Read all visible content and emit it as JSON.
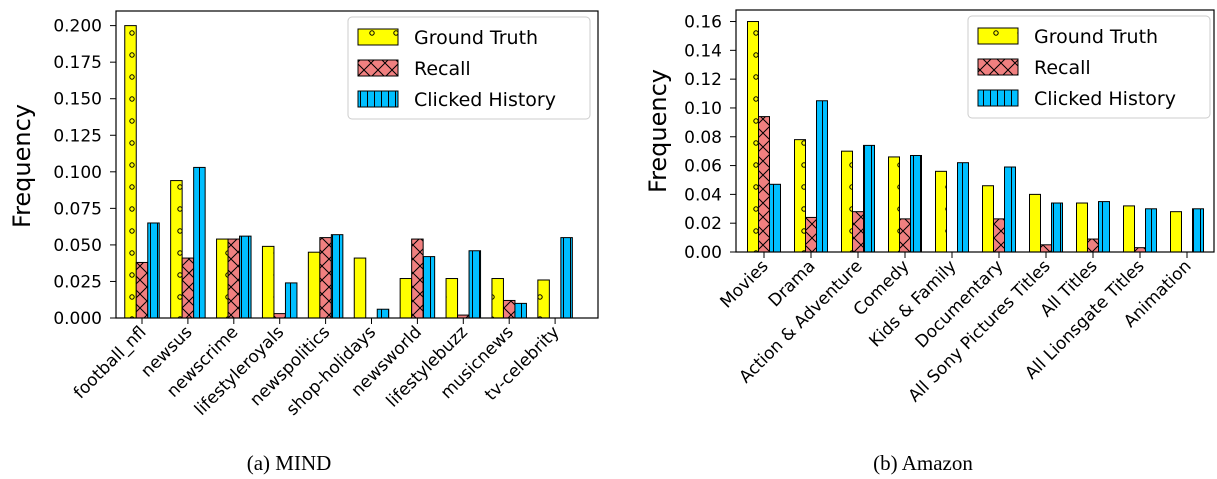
{
  "colors": {
    "ground_truth": "#ffff00",
    "recall": "#f08080",
    "clicked_history": "#00bfff",
    "edge": "#000000"
  },
  "legend_labels": [
    "Ground Truth",
    "Recall",
    "Clicked History"
  ],
  "chart_data": [
    {
      "type": "bar",
      "caption": "(a) MIND",
      "ylabel": "Frequency",
      "ylim": [
        0,
        0.21
      ],
      "yticks": [
        0.0,
        0.025,
        0.05,
        0.075,
        0.1,
        0.125,
        0.15,
        0.175,
        0.2
      ],
      "ytick_labels": [
        "0.000",
        "0.025",
        "0.050",
        "0.075",
        "0.100",
        "0.125",
        "0.150",
        "0.175",
        "0.200"
      ],
      "legend": "top-right",
      "categories": [
        "football_nfl",
        "newsus",
        "newscrime",
        "lifestyleroyals",
        "newspolitics",
        "shop-holidays",
        "newsworld",
        "lifestylebuzz",
        "musicnews",
        "tv-celebrity"
      ],
      "series": [
        {
          "name": "Ground Truth",
          "values": [
            0.2,
            0.094,
            0.054,
            0.049,
            0.045,
            0.041,
            0.027,
            0.027,
            0.027,
            0.026
          ]
        },
        {
          "name": "Recall",
          "values": [
            0.038,
            0.041,
            0.054,
            0.003,
            0.055,
            0.0,
            0.054,
            0.002,
            0.012,
            0.0
          ]
        },
        {
          "name": "Clicked History",
          "values": [
            0.065,
            0.103,
            0.056,
            0.024,
            0.057,
            0.006,
            0.042,
            0.046,
            0.01,
            0.055
          ]
        }
      ]
    },
    {
      "type": "bar",
      "caption": "(b) Amazon",
      "ylabel": "Frequency",
      "ylim": [
        0,
        0.168
      ],
      "yticks": [
        0.0,
        0.02,
        0.04,
        0.06,
        0.08,
        0.1,
        0.12,
        0.14,
        0.16
      ],
      "ytick_labels": [
        "0.00",
        "0.02",
        "0.04",
        "0.06",
        "0.08",
        "0.10",
        "0.12",
        "0.14",
        "0.16"
      ],
      "legend": "top-right",
      "categories": [
        "Movies",
        "Drama",
        "Action & Adventure",
        "Comedy",
        "Kids & Family",
        "Documentary",
        "All Sony Pictures Titles",
        "All Titles",
        "All Lionsgate Titles",
        "Animation"
      ],
      "series": [
        {
          "name": "Ground Truth",
          "values": [
            0.16,
            0.078,
            0.07,
            0.066,
            0.056,
            0.046,
            0.04,
            0.034,
            0.032,
            0.028
          ]
        },
        {
          "name": "Recall",
          "values": [
            0.094,
            0.024,
            0.028,
            0.023,
            0.0,
            0.023,
            0.005,
            0.009,
            0.003,
            0.0
          ]
        },
        {
          "name": "Clicked History",
          "values": [
            0.047,
            0.105,
            0.074,
            0.067,
            0.062,
            0.059,
            0.034,
            0.035,
            0.03,
            0.03
          ]
        }
      ]
    }
  ]
}
